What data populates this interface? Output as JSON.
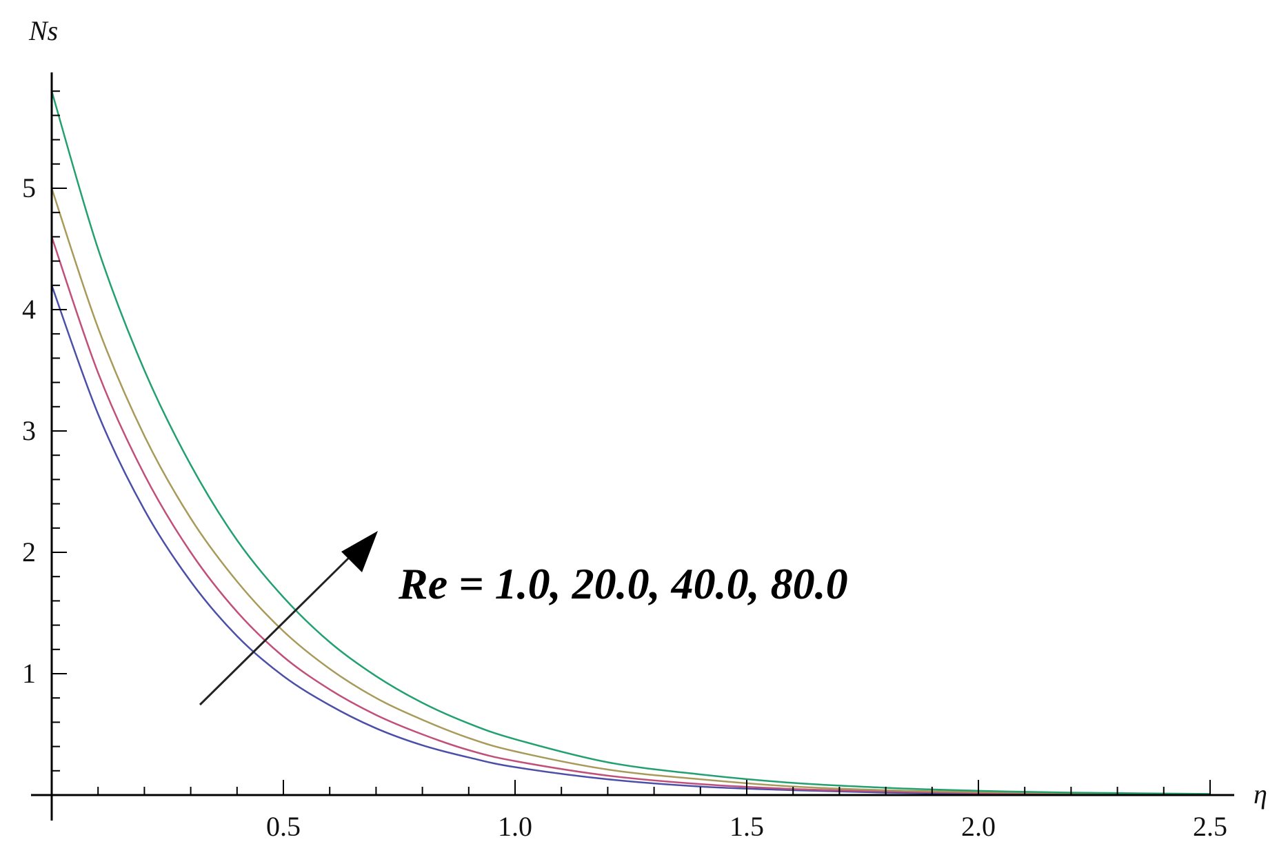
{
  "chart_data": {
    "type": "line",
    "xlabel": "η",
    "ylabel": "Ns",
    "xlim": [
      0,
      2.5
    ],
    "ylim": [
      0,
      6
    ],
    "x_ticks": [
      {
        "value": 0.5,
        "label": "0.5"
      },
      {
        "value": 1.0,
        "label": "1.0"
      },
      {
        "value": 1.5,
        "label": "1.5"
      },
      {
        "value": 2.0,
        "label": "2.0"
      },
      {
        "value": 2.5,
        "label": "2.5"
      }
    ],
    "y_ticks": [
      {
        "value": 1,
        "label": "1"
      },
      {
        "value": 2,
        "label": "2"
      },
      {
        "value": 3,
        "label": "3"
      },
      {
        "value": 4,
        "label": "4"
      },
      {
        "value": 5,
        "label": "5"
      }
    ],
    "x": [
      0,
      0.1,
      0.2,
      0.3,
      0.4,
      0.5,
      0.6,
      0.7,
      0.8,
      0.9,
      1.0,
      1.2,
      1.4,
      1.6,
      1.8,
      2.0,
      2.2,
      2.5
    ],
    "series": [
      {
        "color": "#4B4FA8",
        "values": [
          4.2,
          3.14,
          2.35,
          1.76,
          1.31,
          0.98,
          0.74,
          0.55,
          0.41,
          0.31,
          0.23,
          0.13,
          0.07,
          0.04,
          0.02,
          0.01,
          0.007,
          0.003
        ]
      },
      {
        "color": "#C0507A",
        "values": [
          4.6,
          3.48,
          2.64,
          2.0,
          1.51,
          1.14,
          0.87,
          0.66,
          0.5,
          0.37,
          0.28,
          0.16,
          0.09,
          0.05,
          0.03,
          0.017,
          0.01,
          0.004
        ]
      },
      {
        "color": "#A89A5A",
        "values": [
          5.0,
          3.85,
          2.96,
          2.28,
          1.76,
          1.35,
          1.04,
          0.8,
          0.62,
          0.47,
          0.36,
          0.21,
          0.13,
          0.07,
          0.04,
          0.025,
          0.015,
          0.006
        ]
      },
      {
        "color": "#23A070",
        "values": [
          5.8,
          4.5,
          3.5,
          2.72,
          2.1,
          1.63,
          1.26,
          0.98,
          0.76,
          0.59,
          0.46,
          0.27,
          0.17,
          0.1,
          0.06,
          0.035,
          0.02,
          0.009
        ]
      }
    ],
    "annotation": {
      "text": "Re = 1.0, 20.0, 40.0, 80.0",
      "arrow_direction": "increasing Re"
    },
    "grid": false,
    "legend": "none"
  }
}
